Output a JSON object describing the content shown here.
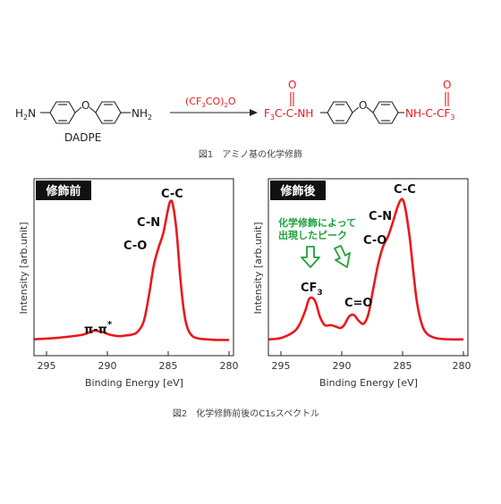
{
  "figure1": {
    "reactant_left_group": "H",
    "reactant_left_sub": "2",
    "reactant_left_tail": "N",
    "reactant_right_group": "NH",
    "reactant_right_sub": "2",
    "oxygen": "O",
    "reactant_name": "DADPE",
    "reagent": {
      "p1": "(CF",
      "s1": "3",
      "p2": "CO)",
      "s2": "2",
      "p3": "O"
    },
    "product_left": {
      "p1": "F",
      "s1": "3",
      "p2": "C-C-NH",
      "carbonyl_o": "O"
    },
    "product_right": {
      "p1": "NH-C-CF",
      "s1": "3",
      "carbonyl_o": "O"
    },
    "caption": "図1　アミノ基の化学修飾"
  },
  "figure2": {
    "caption": "図2　化学修飾前後のC1sスペクトル",
    "colors": {
      "curve": "#e8191e",
      "annotation": "#1fa23a",
      "tag_bg": "#111111"
    },
    "left_panel": {
      "tag": "修飾前",
      "ylabel": "Intensity [arb.unit]",
      "xlabel": "Binding Energy [eV]",
      "xticks": [
        "295",
        "290",
        "285",
        "280"
      ],
      "labels": {
        "cc": "C-C",
        "cn": "C-N",
        "co": "C-O",
        "pipi": "π-π",
        "pipi_sup": "*"
      }
    },
    "right_panel": {
      "tag": "修飾後",
      "ylabel": "Intensity [arb.unit]",
      "xlabel": "Binding Energy [eV]",
      "xticks": [
        "295",
        "290",
        "285",
        "280"
      ],
      "labels": {
        "cc": "C-C",
        "cn": "C-N",
        "co": "C-O",
        "cf": "CF",
        "cf_sub": "3",
        "c_o": "C=O"
      },
      "annotation_line1": "化学修飾によって",
      "annotation_line2": "出現したピーク"
    }
  },
  "chart_data": [
    {
      "type": "line",
      "xlabel": "Binding Energy [eV]",
      "ylabel": "Intensity [arb.unit]",
      "xlim": [
        296,
        280
      ],
      "ylim": [
        0,
        1.0
      ],
      "x_reversed": true,
      "series": [
        {
          "x": [
            296,
            294,
            292,
            291.2,
            290.5,
            289.8,
            289,
            288.5,
            288,
            287.5,
            287,
            286.6,
            286.2,
            285.8,
            285.4,
            285.0,
            284.8,
            284.6,
            284.3,
            284.0,
            283.7,
            283.4,
            283,
            282.5,
            282,
            281,
            280
          ],
          "y": [
            0.02,
            0.03,
            0.05,
            0.075,
            0.07,
            0.05,
            0.04,
            0.045,
            0.05,
            0.07,
            0.14,
            0.3,
            0.5,
            0.62,
            0.72,
            0.88,
            0.93,
            0.9,
            0.72,
            0.42,
            0.2,
            0.09,
            0.04,
            0.025,
            0.02,
            0.015,
            0.015
          ]
        }
      ]
    },
    {
      "type": "line",
      "xlabel": "Binding Energy [eV]",
      "ylabel": "Intensity [arb.unit]",
      "xlim": [
        296,
        280
      ],
      "ylim": [
        0,
        1.0
      ],
      "x_reversed": true,
      "series": [
        {
          "x": [
            296,
            295,
            294,
            293.5,
            293,
            292.7,
            292.4,
            292.1,
            291.8,
            291.4,
            290.9,
            290.5,
            290.1,
            289.8,
            289.4,
            289,
            288.6,
            288.2,
            287.8,
            287.4,
            287,
            286.6,
            286.2,
            285.8,
            285.4,
            285.1,
            284.9,
            284.7,
            284.4,
            284.1,
            283.8,
            283.4,
            283,
            282.5,
            282,
            281,
            280
          ],
          "y": [
            0.02,
            0.03,
            0.07,
            0.12,
            0.22,
            0.3,
            0.31,
            0.27,
            0.18,
            0.12,
            0.12,
            0.11,
            0.1,
            0.12,
            0.18,
            0.19,
            0.15,
            0.13,
            0.2,
            0.38,
            0.55,
            0.67,
            0.74,
            0.84,
            0.95,
            1.0,
            0.98,
            0.9,
            0.72,
            0.48,
            0.27,
            0.12,
            0.06,
            0.035,
            0.025,
            0.02,
            0.02
          ]
        }
      ]
    }
  ]
}
